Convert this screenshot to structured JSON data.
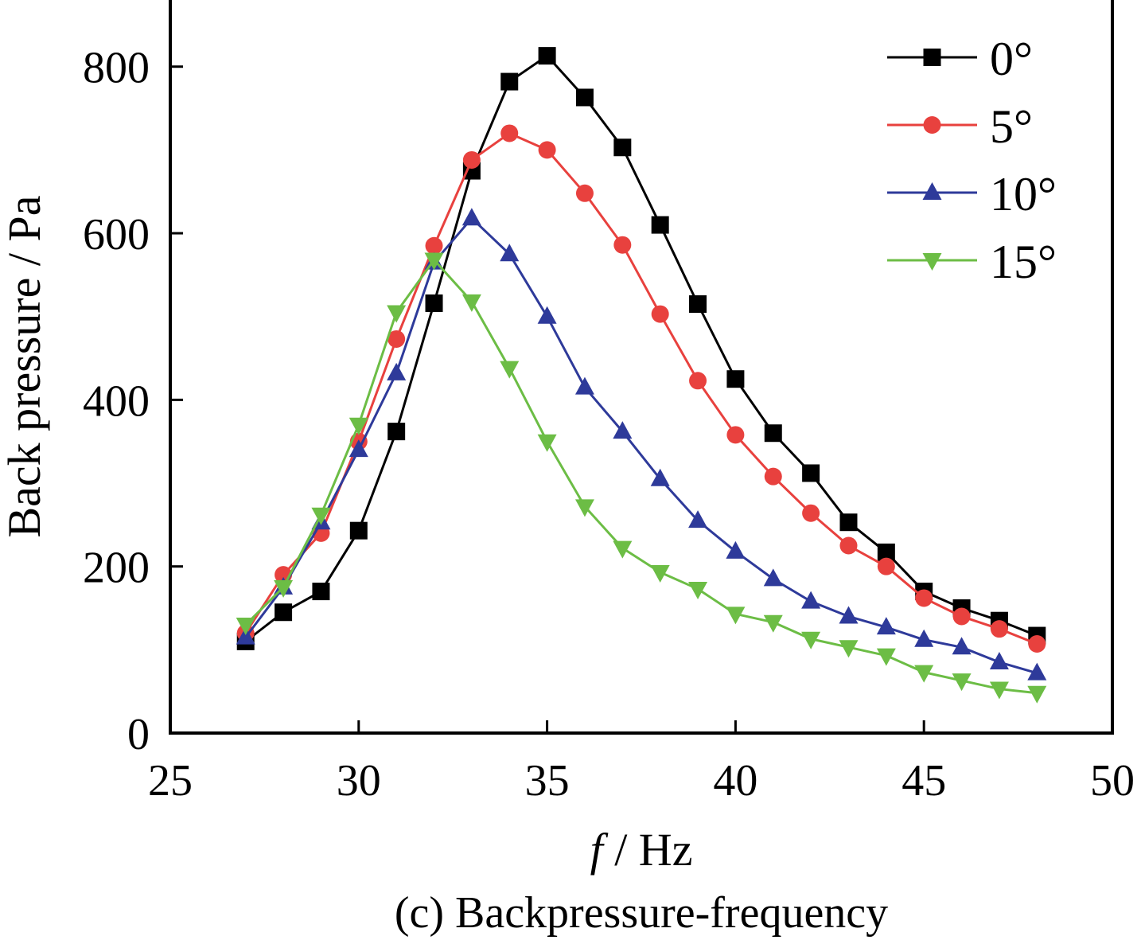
{
  "chart_data": {
    "type": "line",
    "title": "",
    "caption": "(c) Backpressure-frequency",
    "xlabel_italic": "f",
    "xlabel_rest": " / Hz",
    "ylabel": "Back pressure / Pa",
    "xlim": [
      25,
      50
    ],
    "ylim": [
      0,
      880
    ],
    "xticks": [
      25,
      30,
      35,
      40,
      45,
      50
    ],
    "yticks": [
      0,
      200,
      400,
      600,
      800
    ],
    "grid": false,
    "legend_position": "top-right",
    "x": [
      27,
      28,
      29,
      30,
      31,
      32,
      33,
      34,
      35,
      36,
      37,
      38,
      39,
      40,
      41,
      42,
      43,
      44,
      45,
      46,
      47,
      48
    ],
    "series": [
      {
        "name": "0°",
        "color": "#000000",
        "marker": "square",
        "values": [
          110,
          145,
          170,
          243,
          362,
          516,
          675,
          782,
          813,
          763,
          703,
          610,
          515,
          425,
          360,
          312,
          253,
          217,
          170,
          150,
          135,
          117
        ]
      },
      {
        "name": "5°",
        "color": "#e8413e",
        "marker": "circle",
        "values": [
          120,
          190,
          240,
          350,
          473,
          585,
          688,
          720,
          700,
          648,
          586,
          503,
          423,
          358,
          308,
          264,
          225,
          200,
          162,
          140,
          125,
          107
        ]
      },
      {
        "name": "10°",
        "color": "#2e3a9a",
        "marker": "triangle-up",
        "values": [
          115,
          175,
          253,
          340,
          432,
          565,
          618,
          575,
          500,
          415,
          362,
          305,
          255,
          218,
          185,
          158,
          140,
          127,
          112,
          103,
          85,
          72
        ]
      },
      {
        "name": "15°",
        "color": "#6cbd45",
        "marker": "triangle-down",
        "values": [
          130,
          175,
          262,
          370,
          505,
          568,
          518,
          438,
          350,
          272,
          222,
          193,
          173,
          143,
          133,
          113,
          103,
          93,
          73,
          63,
          53,
          48
        ]
      }
    ]
  }
}
